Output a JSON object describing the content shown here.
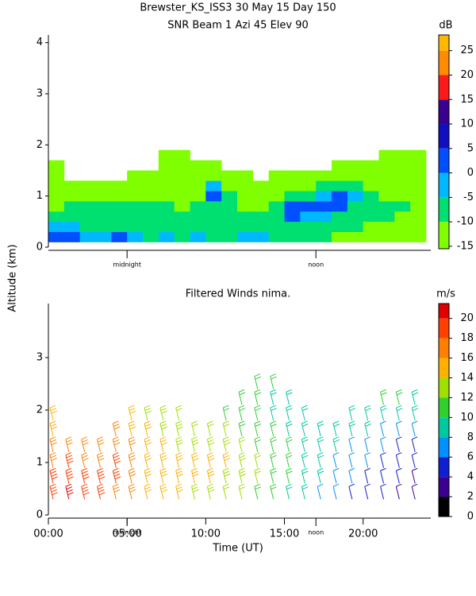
{
  "chart_data": [
    {
      "type": "heatmap",
      "title": "Brewster_KS_ISS3  30 May 15 Day 150",
      "subtitle": "SNR Beam  1 Azi  45 Elev 90",
      "ylabel": "Altitude (km)",
      "xlim": [
        0,
        24.3
      ],
      "ylim": [
        0,
        4.15
      ],
      "yticks": [
        0,
        1,
        2,
        3,
        4
      ],
      "markers": [
        {
          "label": "midnight",
          "x": 5
        },
        {
          "label": "noon",
          "x": 17
        }
      ],
      "colorbar": {
        "unit": "dB",
        "lim": [
          -15.5,
          28.2
        ],
        "ticks": [
          -15,
          -10,
          -5,
          0,
          5,
          10,
          15,
          20,
          25
        ],
        "colors": [
          "#80ff00",
          "#00e070",
          "#00b8ff",
          "#0050ff",
          "#1010c0",
          "#3a0090",
          "#ff1a1a",
          "#ff8c00",
          "#ffb800"
        ]
      },
      "x": [
        0,
        1,
        2,
        3,
        4,
        5,
        6,
        7,
        8,
        9,
        10,
        11,
        12,
        13,
        14,
        15,
        16,
        17,
        18,
        19,
        20,
        21,
        22,
        23
      ],
      "heights": [
        0.2,
        0.4,
        0.6,
        0.8,
        1.0,
        1.2,
        1.4,
        1.6,
        1.8,
        2.0
      ],
      "values": [
        [
          0,
          -5,
          -8,
          -12,
          -13,
          -14,
          -14,
          -15,
          null,
          null
        ],
        [
          2,
          -5,
          -8,
          -10,
          -13,
          -14,
          null,
          null,
          null,
          null
        ],
        [
          -3,
          -6,
          -8,
          -10,
          -12,
          -14,
          null,
          null,
          null,
          null
        ],
        [
          -4,
          -7,
          -9,
          -10,
          -12,
          -14,
          null,
          null,
          null,
          null
        ],
        [
          3,
          -6,
          -8,
          -9,
          -11,
          -14,
          null,
          null,
          null,
          null
        ],
        [
          -5,
          -7,
          -8,
          -9,
          -11,
          -13,
          -14,
          null,
          null,
          null
        ],
        [
          -6,
          -8,
          -9,
          -10,
          -12,
          -13,
          -14,
          null,
          null,
          null
        ],
        [
          -5,
          -7,
          -9,
          -10,
          -12,
          -13,
          -14,
          -14,
          -15,
          null
        ],
        [
          -6,
          -8,
          -9,
          -11,
          -12,
          -13,
          -14,
          -14,
          -15,
          null
        ],
        [
          -5,
          -7,
          -9,
          -10,
          -12,
          -13,
          -14,
          -15,
          null,
          null
        ],
        [
          -7,
          -8,
          -9,
          -7,
          2,
          -5,
          -12,
          -14,
          null,
          null
        ],
        [
          -10,
          -9,
          -8,
          -10,
          -8,
          -12,
          -14,
          null,
          null,
          null
        ],
        [
          -4,
          -8,
          -9,
          -12,
          -13,
          -14,
          -14,
          null,
          null,
          null
        ],
        [
          -2,
          -9,
          -10,
          -12,
          -13,
          -14,
          null,
          null,
          null,
          null
        ],
        [
          -6,
          -9,
          -8,
          -10,
          -12,
          -14,
          -15,
          null,
          null,
          null
        ],
        [
          -8,
          -9,
          0,
          2,
          -8,
          -13,
          -14,
          null,
          null,
          null
        ],
        [
          -9,
          -8,
          -4,
          3,
          -6,
          -12,
          -14,
          null,
          null,
          null
        ],
        [
          -10,
          -9,
          -5,
          2,
          -3,
          -10,
          -13,
          null,
          null,
          null
        ],
        [
          -11,
          -10,
          -8,
          0,
          1,
          -8,
          -13,
          -14,
          null,
          null
        ],
        [
          -11,
          -10,
          -9,
          -6,
          -4,
          -10,
          -13,
          -14,
          null,
          null
        ],
        [
          -12,
          -11,
          -10,
          -9,
          -10,
          -12,
          -13,
          -14,
          null,
          null
        ],
        [
          -12,
          -11,
          -10,
          -10,
          -11,
          -12,
          -13,
          -14,
          -15,
          null
        ],
        [
          -12,
          -12,
          -11,
          -10,
          -11,
          -12,
          -13,
          -14,
          -15,
          null
        ],
        [
          -13,
          -12,
          -11,
          -11,
          -12,
          -13,
          -14,
          -14,
          -15,
          null
        ]
      ]
    },
    {
      "type": "barbs",
      "title": "Filtered Winds nima.",
      "xlabel": "Time (UT)",
      "xlim": [
        0,
        24.3
      ],
      "ylim": [
        0,
        4.03
      ],
      "yticks": [
        0,
        1,
        2,
        3
      ],
      "xticks": [
        {
          "value": 0,
          "label": "00:00"
        },
        {
          "value": 5,
          "label": "05:00"
        },
        {
          "value": 10,
          "label": "10:00"
        },
        {
          "value": 15,
          "label": "15:00"
        },
        {
          "value": 20,
          "label": "20:00"
        }
      ],
      "markers": [
        {
          "label": "midnight",
          "x": 5
        },
        {
          "label": "noon",
          "x": 17
        }
      ],
      "colorbar": {
        "unit": "m/s",
        "lim": [
          0,
          21.5
        ],
        "ticks": [
          0,
          2,
          4,
          6,
          8,
          10,
          12,
          14,
          16,
          18,
          20
        ],
        "colors": [
          "#000000",
          "#3a0090",
          "#1020d0",
          "#0090ff",
          "#00c8a0",
          "#30d030",
          "#a0e000",
          "#ffb000",
          "#ff8000",
          "#ff4000",
          "#e00000"
        ]
      },
      "x": [
        0,
        1,
        2,
        3,
        4,
        5,
        6,
        7,
        8,
        9,
        10,
        11,
        12,
        13,
        14,
        15,
        16,
        17,
        18,
        19,
        20,
        21,
        22,
        23
      ],
      "heights": [
        0.3,
        0.6,
        0.9,
        1.2,
        1.5,
        1.8,
        2.1,
        2.4
      ],
      "values": [
        [
          19,
          18,
          17,
          16,
          15,
          14,
          null,
          null
        ],
        [
          20,
          19,
          18,
          17,
          null,
          null,
          null,
          null
        ],
        [
          19,
          18,
          17,
          16,
          null,
          null,
          null,
          null
        ],
        [
          18,
          18,
          17,
          16,
          null,
          null,
          null,
          null
        ],
        [
          17,
          18,
          18,
          17,
          16,
          null,
          null,
          null
        ],
        [
          16,
          17,
          17,
          16,
          15,
          14,
          null,
          null
        ],
        [
          15,
          15,
          15,
          14,
          14,
          13,
          null,
          null
        ],
        [
          14,
          14,
          14,
          14,
          13,
          13,
          null,
          null
        ],
        [
          14,
          14,
          14,
          13,
          13,
          12,
          null,
          null
        ],
        [
          13,
          14,
          14,
          13,
          12,
          null,
          null,
          null
        ],
        [
          13,
          14,
          14,
          13,
          12,
          null,
          null,
          null
        ],
        [
          12,
          13,
          14,
          13,
          12,
          11,
          null,
          null
        ],
        [
          12,
          13,
          13,
          12,
          11,
          11,
          10,
          null
        ],
        [
          11,
          12,
          12,
          11,
          10,
          10,
          10,
          11
        ],
        [
          10,
          11,
          11,
          10,
          10,
          9,
          9,
          10
        ],
        [
          9,
          10,
          10,
          10,
          9,
          9,
          9,
          null
        ],
        [
          8,
          9,
          9,
          9,
          9,
          9,
          null,
          null
        ],
        [
          7,
          8,
          8,
          8,
          8,
          null,
          null,
          null
        ],
        [
          6,
          7,
          7,
          8,
          8,
          null,
          null,
          null
        ],
        [
          5,
          6,
          7,
          7,
          8,
          9,
          null,
          null
        ],
        [
          5,
          5,
          6,
          7,
          8,
          9,
          null,
          null
        ],
        [
          4,
          5,
          5,
          6,
          7,
          9,
          10,
          null
        ],
        [
          3,
          4,
          4,
          5,
          7,
          9,
          10,
          null
        ],
        [
          3,
          3,
          4,
          5,
          6,
          8,
          9,
          null
        ]
      ]
    }
  ]
}
